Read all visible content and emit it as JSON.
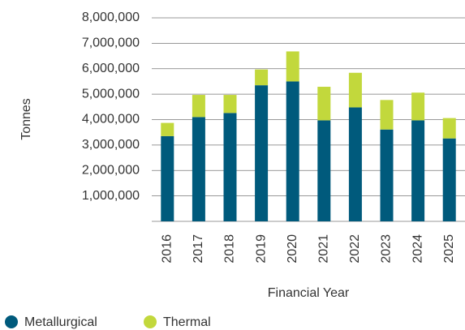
{
  "chart_data": {
    "type": "stacked_bar",
    "categories": [
      "2016",
      "2017",
      "2018",
      "2019",
      "2020",
      "2021",
      "2022",
      "2023",
      "2024",
      "2025"
    ],
    "series": [
      {
        "name": "Metallurgical",
        "color": "#005a7c",
        "values": [
          3350000,
          4100000,
          4260000,
          5350000,
          5500000,
          3970000,
          4480000,
          3610000,
          3970000,
          3260000
        ]
      },
      {
        "name": "Thermal",
        "color": "#c2d83c",
        "values": [
          520000,
          870000,
          710000,
          620000,
          1180000,
          1320000,
          1360000,
          1160000,
          1090000,
          800000
        ]
      }
    ],
    "x_label": "Financial Year",
    "y_label": "Tonnes",
    "ylim": [
      0,
      8000000
    ],
    "yticks": [
      {
        "value": 1000000,
        "label": "1,000,000"
      },
      {
        "value": 2000000,
        "label": "2,000,000"
      },
      {
        "value": 3000000,
        "label": "3,000,000"
      },
      {
        "value": 4000000,
        "label": "4,000,000"
      },
      {
        "value": 5000000,
        "label": "5,000,000"
      },
      {
        "value": 6000000,
        "label": "6,000,000"
      },
      {
        "value": 7000000,
        "label": "7,000,000"
      },
      {
        "value": 8000000,
        "label": "8,000,000"
      }
    ],
    "grid": true
  }
}
